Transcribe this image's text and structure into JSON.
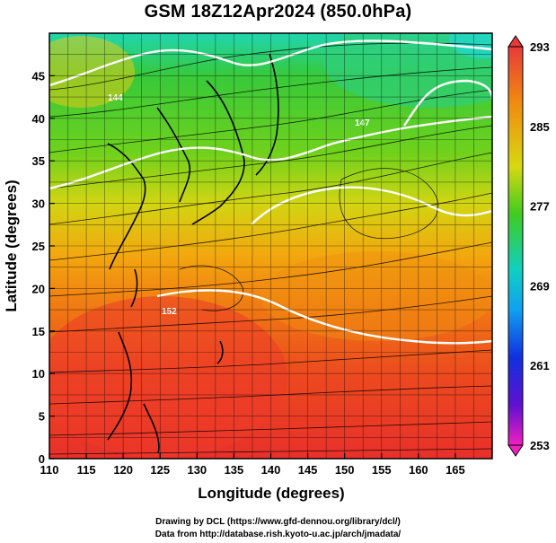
{
  "title": "GSM 18Z12Apr2024 (850.0hPa)",
  "xlabel": "Longitude (degrees)",
  "ylabel": "Latitude  (degrees)",
  "credits": [
    "Drawing by DCL (https://www.gfd-dennou.org/library/dcl/)",
    "Data from http://database.rish.kyoto-u.ac.jp/arch/jmadata/"
  ],
  "map": {
    "lon_range": [
      110,
      170
    ],
    "lat_range": [
      0,
      50
    ],
    "lon_ticks": [
      "110",
      "115",
      "120",
      "125",
      "130",
      "135",
      "140",
      "145",
      "150",
      "155",
      "160",
      "165"
    ],
    "lat_ticks": [
      "0",
      "5",
      "10",
      "15",
      "20",
      "25",
      "30",
      "35",
      "40",
      "45"
    ],
    "contour_labels": [
      "144",
      "152",
      "147"
    ],
    "colors": {
      "hot": "#e8332a",
      "warm": "#f07c10",
      "mid": "#e6d812",
      "green": "#33cc33",
      "cyan": "#22d6c8",
      "contour": "#ffffff"
    }
  },
  "colorbar": {
    "labels": [
      "293",
      "285",
      "277",
      "269",
      "261",
      "253"
    ]
  }
}
